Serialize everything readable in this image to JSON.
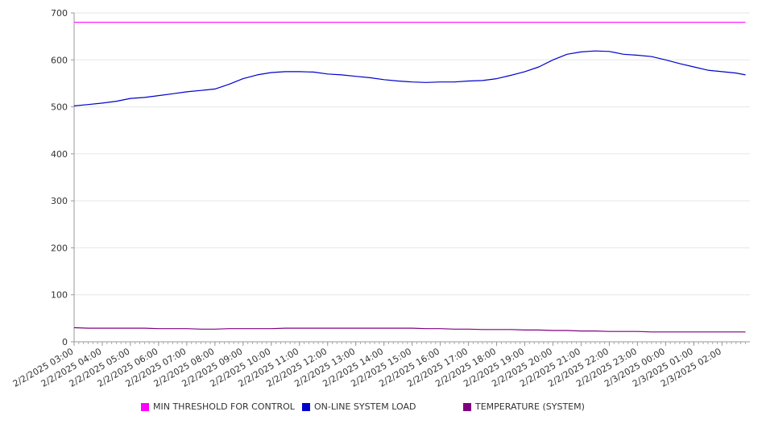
{
  "chart_data": {
    "type": "line",
    "title": "",
    "xlabel": "",
    "ylabel": "",
    "ylim": [
      0,
      700
    ],
    "y_ticks": [
      0,
      100,
      200,
      300,
      400,
      500,
      600,
      700
    ],
    "grid": true,
    "legend_position": "bottom",
    "x_tick_labels": [
      "2/2/2025 03:00",
      "2/2/2025 04:00",
      "2/2/2025 05:00",
      "2/2/2025 06:00",
      "2/2/2025 07:00",
      "2/2/2025 08:00",
      "2/2/2025 09:00",
      "2/2/2025 10:00",
      "2/2/2025 11:00",
      "2/2/2025 12:00",
      "2/2/2025 13:00",
      "2/2/2025 14:00",
      "2/2/2025 15:00",
      "2/2/2025 16:00",
      "2/2/2025 17:00",
      "2/2/2025 18:00",
      "2/2/2025 19:00",
      "2/2/2025 20:00",
      "2/2/2025 21:00",
      "2/2/2025 22:00",
      "2/2/2025 23:00",
      "2/3/2025 00:00",
      "2/3/2025 01:00",
      "2/3/2025 02:00"
    ],
    "x": [
      "2/2/2025 03:00",
      "2/2/2025 03:30",
      "2/2/2025 04:00",
      "2/2/2025 04:30",
      "2/2/2025 05:00",
      "2/2/2025 05:30",
      "2/2/2025 06:00",
      "2/2/2025 06:30",
      "2/2/2025 07:00",
      "2/2/2025 07:30",
      "2/2/2025 08:00",
      "2/2/2025 08:30",
      "2/2/2025 09:00",
      "2/2/2025 09:30",
      "2/2/2025 10:00",
      "2/2/2025 10:30",
      "2/2/2025 11:00",
      "2/2/2025 11:30",
      "2/2/2025 12:00",
      "2/2/2025 12:30",
      "2/2/2025 13:00",
      "2/2/2025 13:30",
      "2/2/2025 14:00",
      "2/2/2025 14:30",
      "2/2/2025 15:00",
      "2/2/2025 15:30",
      "2/2/2025 16:00",
      "2/2/2025 16:30",
      "2/2/2025 17:00",
      "2/2/2025 17:30",
      "2/2/2025 18:00",
      "2/2/2025 18:30",
      "2/2/2025 19:00",
      "2/2/2025 19:30",
      "2/2/2025 20:00",
      "2/2/2025 20:30",
      "2/2/2025 21:00",
      "2/2/2025 21:30",
      "2/2/2025 22:00",
      "2/2/2025 22:30",
      "2/2/2025 23:00",
      "2/2/2025 23:30",
      "2/3/2025 00:00",
      "2/3/2025 00:30",
      "2/3/2025 01:00",
      "2/3/2025 01:30",
      "2/3/2025 02:00",
      "2/3/2025 02:30",
      "2/3/2025 02:50"
    ],
    "series": [
      {
        "name": "MIN THRESHOLD FOR CONTROL",
        "color": "#ff00ff",
        "values": [
          680,
          680,
          680,
          680,
          680,
          680,
          680,
          680,
          680,
          680,
          680,
          680,
          680,
          680,
          680,
          680,
          680,
          680,
          680,
          680,
          680,
          680,
          680,
          680,
          680,
          680,
          680,
          680,
          680,
          680,
          680,
          680,
          680,
          680,
          680,
          680,
          680,
          680,
          680,
          680,
          680,
          680,
          680,
          680,
          680,
          680,
          680,
          680,
          680
        ]
      },
      {
        "name": "ON-LINE SYSTEM LOAD",
        "color": "#0000cc",
        "values": [
          502,
          505,
          508,
          512,
          518,
          520,
          524,
          528,
          532,
          535,
          538,
          548,
          560,
          568,
          573,
          575,
          575,
          574,
          570,
          568,
          565,
          562,
          558,
          555,
          553,
          552,
          553,
          553,
          555,
          556,
          560,
          567,
          575,
          585,
          600,
          612,
          617,
          619,
          618,
          612,
          610,
          607,
          600,
          592,
          585,
          578,
          575,
          572,
          568
        ]
      },
      {
        "name": "TEMPERATURE (SYSTEM)",
        "color": "#800080",
        "values": [
          30,
          29,
          29,
          29,
          29,
          29,
          28,
          28,
          28,
          27,
          27,
          28,
          28,
          28,
          28,
          29,
          29,
          29,
          29,
          29,
          29,
          29,
          29,
          29,
          29,
          28,
          28,
          27,
          27,
          26,
          26,
          26,
          25,
          25,
          24,
          24,
          23,
          23,
          22,
          22,
          22,
          21,
          21,
          21,
          21,
          21,
          21,
          21,
          21
        ]
      }
    ]
  }
}
